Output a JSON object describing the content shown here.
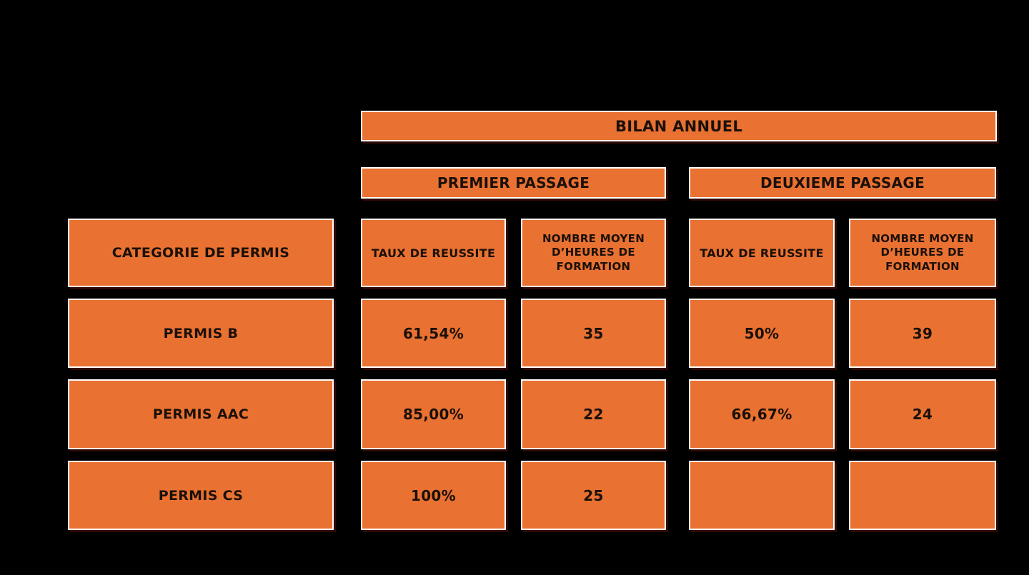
{
  "chart_data": {
    "type": "table",
    "title": "BILAN ANNUEL",
    "group_headers": [
      "PREMIER PASSAGE",
      "DEUXIEME PASSAGE"
    ],
    "columns": [
      "CATEGORIE DE PERMIS",
      "TAUX DE REUSSITE",
      "NOMBRE MOYEN D’HEURES DE FORMATION",
      "TAUX DE REUSSITE",
      "NOMBRE MOYEN D’HEURES DE FORMATION"
    ],
    "rows": [
      {
        "label": "PERMIS B",
        "cells": [
          "61,54%",
          "35",
          "50%",
          "39"
        ]
      },
      {
        "label": "PERMIS AAC",
        "cells": [
          "85,00%",
          "22",
          "66,67%",
          "24"
        ]
      },
      {
        "label": "PERMIS CS",
        "cells": [
          "100%",
          "25",
          "",
          ""
        ]
      }
    ],
    "notes": "Cells for PERMIS CS deuxieme passage are empty"
  },
  "colors": {
    "background": "#000000",
    "cell_fill": "#E97132",
    "cell_border": "#FFFFFF",
    "text": "#1A1008"
  }
}
